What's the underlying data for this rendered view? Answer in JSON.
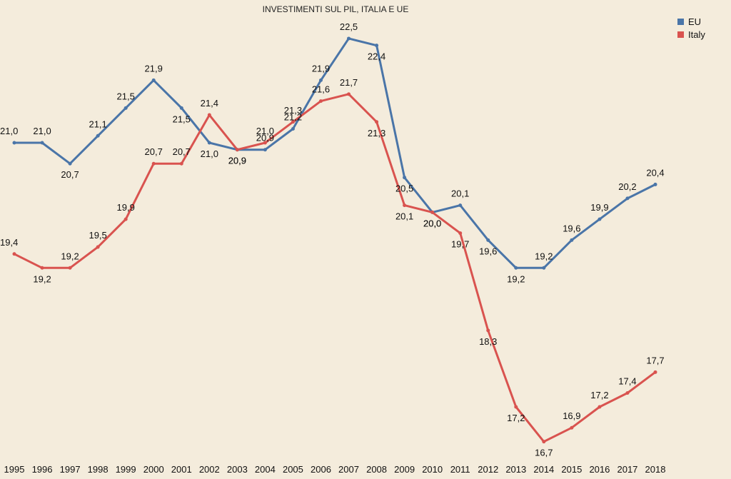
{
  "chart_data": {
    "type": "line",
    "title": "INVESTIMENTI SUL PIL, ITALIA E UE",
    "xlabel": "",
    "ylabel": "",
    "x": [
      1995,
      1996,
      1997,
      1998,
      1999,
      2000,
      2001,
      2002,
      2003,
      2004,
      2005,
      2006,
      2007,
      2008,
      2009,
      2010,
      2011,
      2012,
      2013,
      2014,
      2015,
      2016,
      2017,
      2018
    ],
    "ylim": [
      16.5,
      22.8
    ],
    "grid": false,
    "legend_position": "top-right",
    "series": [
      {
        "name": "EU",
        "color": "#4a75a8",
        "values": [
          21.0,
          21.0,
          20.7,
          21.1,
          21.5,
          21.9,
          21.5,
          21.0,
          20.9,
          20.9,
          21.2,
          21.9,
          22.5,
          22.4,
          20.5,
          20.0,
          20.1,
          19.6,
          19.2,
          19.2,
          19.6,
          19.9,
          20.2,
          20.4
        ],
        "labels": [
          "21,0",
          "21,0",
          "20,7",
          "21,1",
          "21,5",
          "21,9",
          "21,5",
          "21,0",
          "20,9",
          "20,9",
          "21,2",
          "21,9",
          "22,5",
          "22,4",
          "20,5",
          "20,0",
          "20,1",
          "19,6",
          "19,2",
          "19,2",
          "19,6",
          "19,9",
          "20,2",
          "20,4"
        ]
      },
      {
        "name": "Italy",
        "color": "#d9534f",
        "values": [
          19.4,
          19.2,
          19.2,
          19.5,
          19.9,
          20.7,
          20.7,
          21.4,
          20.9,
          21.0,
          21.3,
          21.6,
          21.7,
          21.3,
          20.1,
          20.0,
          19.7,
          18.3,
          17.2,
          16.7,
          16.9,
          17.2,
          17.4,
          17.7
        ],
        "labels": [
          "19,4",
          "19,2",
          "19,2",
          "19,5",
          "19,9",
          "20,7",
          "20,7",
          "21,4",
          "20,9",
          "21,0",
          "21,3",
          "21,6",
          "21,7",
          "21,3",
          "20,1",
          "20,0",
          "19,7",
          "18,3",
          "17,2",
          "16,7",
          "16,9",
          "17,2",
          "17,4",
          "17,7"
        ]
      }
    ]
  }
}
